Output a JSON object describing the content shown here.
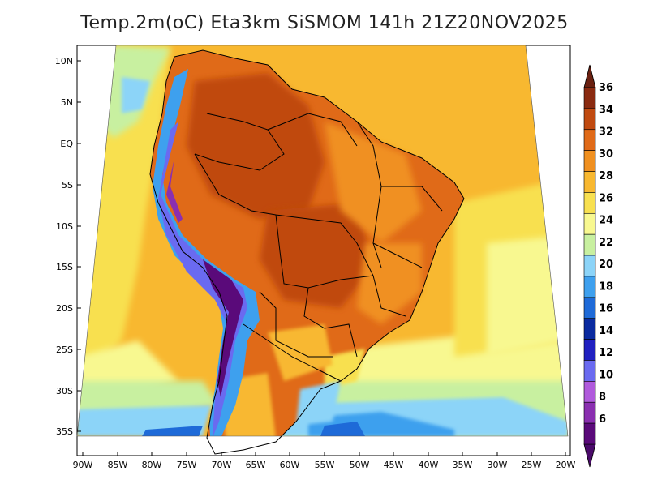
{
  "title": "Temp.2m(oC) Eta3km SiSMOM 141h 21Z20NOV2025",
  "lat_labels": [
    "10N",
    "5N",
    "EQ",
    "5S",
    "10S",
    "15S",
    "20S",
    "25S",
    "30S",
    "35S"
  ],
  "lon_labels": [
    "90W",
    "85W",
    "80W",
    "75W",
    "70W",
    "65W",
    "60W",
    "55W",
    "50W",
    "45W",
    "40W",
    "35W",
    "30W",
    "25W",
    "20W"
  ],
  "colorbar": {
    "labels": [
      "6",
      "8",
      "10",
      "12",
      "14",
      "16",
      "18",
      "20",
      "22",
      "24",
      "26",
      "28",
      "30",
      "32",
      "34",
      "36"
    ],
    "colors": [
      "#5a0a7a",
      "#8a2fb0",
      "#b05adc",
      "#6a6af0",
      "#2020c0",
      "#0a2aa0",
      "#1e6ad8",
      "#3ea0ee",
      "#8cd4f8",
      "#c8f0a0",
      "#f8f890",
      "#f8e050",
      "#f8b830",
      "#f09020",
      "#e06a18",
      "#c04a10",
      "#8a2a10"
    ],
    "low_arrow_color": "#4a0a6a",
    "high_arrow_color": "#6a2010"
  },
  "colors": {
    "ocean_warm": "#f8b830",
    "ocean_mid": "#f8e050",
    "ocean_cool": "#f8f890",
    "ocean_cold": "#c8f0a0",
    "land_hot": "#e06a18",
    "land_very_hot": "#c04a10",
    "andes": "#3ea0ee",
    "andes_cold": "#5a0a7a"
  }
}
